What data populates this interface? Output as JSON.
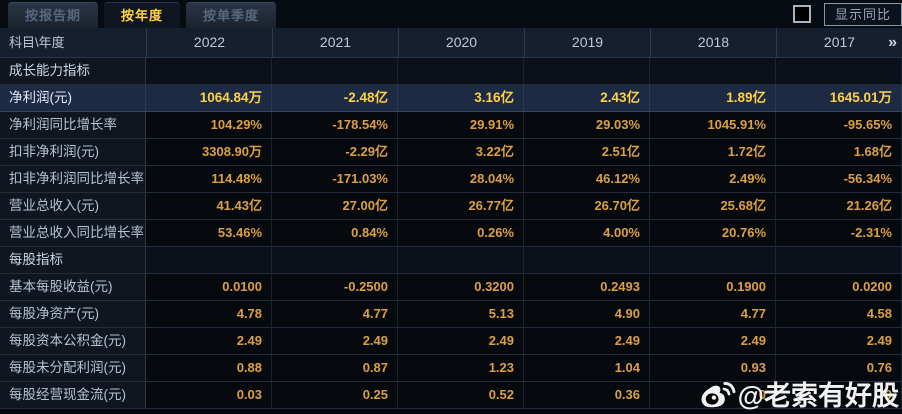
{
  "tabs": [
    {
      "label": "按报告期",
      "active": false
    },
    {
      "label": "按年度",
      "active": true
    },
    {
      "label": "按单季度",
      "active": false
    }
  ],
  "controls": {
    "show_yoy_label": "显示同比"
  },
  "table": {
    "corner_header": "科目\\年度",
    "years": [
      "2022",
      "2021",
      "2020",
      "2019",
      "2018",
      "2017"
    ],
    "more_years_icon": "»",
    "rows": [
      {
        "type": "section",
        "label": "成长能力指标",
        "values": [
          "",
          "",
          "",
          "",
          "",
          ""
        ]
      },
      {
        "type": "highlight",
        "label": "净利润(元)",
        "values": [
          "1064.84万",
          "-2.48亿",
          "3.16亿",
          "2.43亿",
          "1.89亿",
          "1645.01万"
        ]
      },
      {
        "type": "data",
        "label": "净利润同比增长率",
        "values": [
          "104.29%",
          "-178.54%",
          "29.91%",
          "29.03%",
          "1045.91%",
          "-95.65%"
        ]
      },
      {
        "type": "data",
        "label": "扣非净利润(元)",
        "values": [
          "3308.90万",
          "-2.29亿",
          "3.22亿",
          "2.51亿",
          "1.72亿",
          "1.68亿"
        ]
      },
      {
        "type": "data",
        "label": "扣非净利润同比增长率",
        "values": [
          "114.48%",
          "-171.03%",
          "28.04%",
          "46.12%",
          "2.49%",
          "-56.34%"
        ]
      },
      {
        "type": "data",
        "label": "营业总收入(元)",
        "values": [
          "41.43亿",
          "27.00亿",
          "26.77亿",
          "26.70亿",
          "25.68亿",
          "21.26亿"
        ]
      },
      {
        "type": "data",
        "label": "营业总收入同比增长率",
        "values": [
          "53.46%",
          "0.84%",
          "0.26%",
          "4.00%",
          "20.76%",
          "-2.31%"
        ]
      },
      {
        "type": "section",
        "label": "每股指标",
        "values": [
          "",
          "",
          "",
          "",
          "",
          ""
        ]
      },
      {
        "type": "data",
        "label": "基本每股收益(元)",
        "values": [
          "0.0100",
          "-0.2500",
          "0.3200",
          "0.2493",
          "0.1900",
          "0.0200"
        ]
      },
      {
        "type": "data",
        "label": "每股净资产(元)",
        "values": [
          "4.78",
          "4.77",
          "5.13",
          "4.90",
          "4.77",
          "4.58"
        ]
      },
      {
        "type": "data",
        "label": "每股资本公积金(元)",
        "values": [
          "2.49",
          "2.49",
          "2.49",
          "2.49",
          "2.49",
          "2.49"
        ]
      },
      {
        "type": "data",
        "label": "每股未分配利润(元)",
        "values": [
          "0.88",
          "0.87",
          "1.23",
          "1.04",
          "0.93",
          "0.76"
        ]
      },
      {
        "type": "data",
        "label": "每股经营现金流(元)",
        "values": [
          "0.03",
          "0.25",
          "0.52",
          "0.36",
          "0",
          "9"
        ]
      }
    ]
  },
  "watermark": {
    "text": "@老索有好股",
    "icon": "weibo-icon"
  },
  "colors": {
    "accent_gold": "#ffd23e",
    "value_orange": "#dca043",
    "highlight_row_bg": "#1c2a44",
    "label_column_bg": "#10161f",
    "header_bg": "#161f2e",
    "cell_bg": "#06090e"
  }
}
